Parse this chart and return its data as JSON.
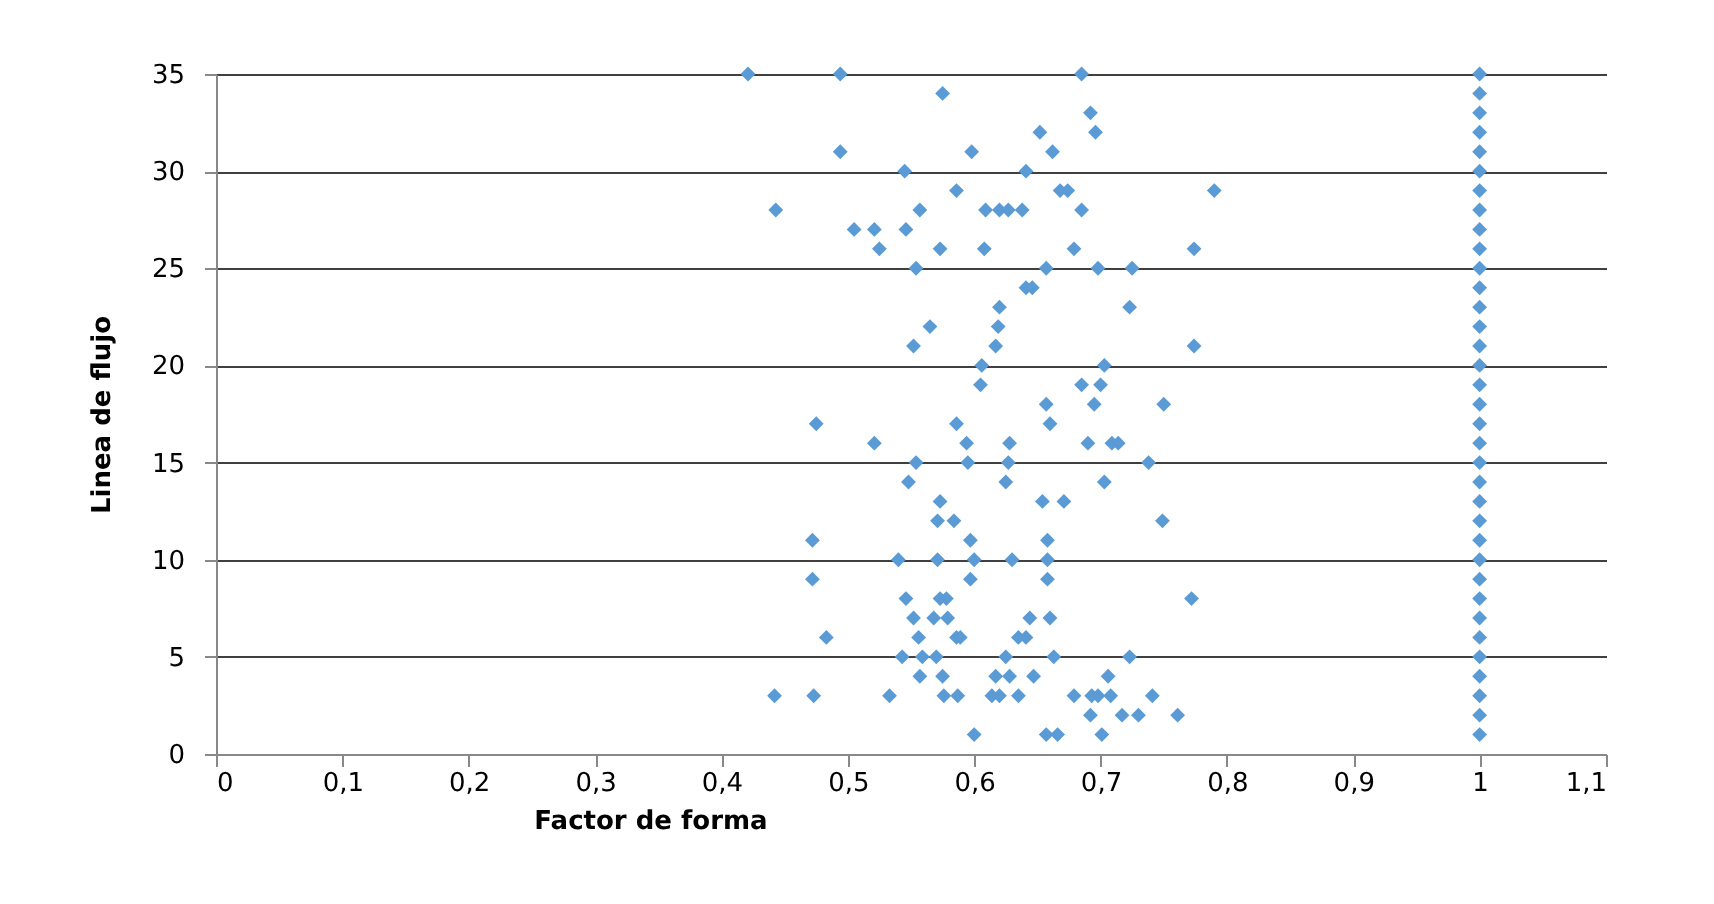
{
  "chart_data": {
    "type": "scatter",
    "xlabel": "Factor de forma",
    "ylabel": "Linea de flujo",
    "xlim": [
      0,
      1.1
    ],
    "xticks": [
      0,
      {
        "value": 0.1,
        "label": "0,1"
      },
      {
        "value": 0.2,
        "label": "0,2"
      },
      {
        "value": 0.3,
        "label": "0,3"
      },
      {
        "value": 0.4,
        "label": "0,4"
      },
      {
        "value": 0.5,
        "label": "0,5"
      },
      {
        "value": 0.6,
        "label": "0,6"
      },
      {
        "value": 0.7,
        "label": "0,7"
      },
      {
        "value": 0.8,
        "label": "0,8"
      },
      {
        "value": 0.9,
        "label": "0,9"
      },
      1,
      {
        "value": 1.1,
        "label": "1,1"
      }
    ],
    "ylim": [
      0,
      35
    ],
    "yticks": [
      0,
      5,
      10,
      15,
      20,
      25,
      30,
      35
    ],
    "grid": "y",
    "marker": "diamond",
    "series": [
      {
        "color": "#5b9bd5",
        "x": [
          0.421,
          0.494,
          0.685,
          0.575,
          0.692,
          0.652,
          0.696,
          0.494,
          0.598,
          0.662,
          0.545,
          0.641,
          0.586,
          0.668,
          0.674,
          0.79,
          0.443,
          0.557,
          0.609,
          0.62,
          0.627,
          0.638,
          0.685,
          0.505,
          0.521,
          0.546,
          0.525,
          0.573,
          0.608,
          0.679,
          0.774,
          0.554,
          0.657,
          0.698,
          0.725,
          0.641,
          0.646,
          0.62,
          0.723,
          0.565,
          0.619,
          0.552,
          0.617,
          0.774,
          0.606,
          0.703,
          0.605,
          0.685,
          0.7,
          0.657,
          0.695,
          0.75,
          0.475,
          0.586,
          0.66,
          0.521,
          0.594,
          0.628,
          0.69,
          0.709,
          0.714,
          0.554,
          0.595,
          0.627,
          0.738,
          0.548,
          0.625,
          0.703,
          0.573,
          0.654,
          0.671,
          0.571,
          0.584,
          0.749,
          0.472,
          0.597,
          0.658,
          0.54,
          0.571,
          0.6,
          0.63,
          0.658,
          0.472,
          0.597,
          0.658,
          0.546,
          0.573,
          0.578,
          0.772,
          0.552,
          0.568,
          0.579,
          0.644,
          0.66,
          0.483,
          0.556,
          0.586,
          0.589,
          0.635,
          0.641,
          0.543,
          0.559,
          0.57,
          0.625,
          0.663,
          0.723,
          0.557,
          0.575,
          0.617,
          0.628,
          0.647,
          0.706,
          0.442,
          0.473,
          0.533,
          0.576,
          0.587,
          0.614,
          0.62,
          0.635,
          0.679,
          0.693,
          0.698,
          0.708,
          0.741,
          0.692,
          0.717,
          0.73,
          0.761,
          0.6,
          0.657,
          0.666,
          0.701,
          1,
          1,
          1,
          1,
          1,
          1,
          1,
          1,
          1,
          1,
          1,
          1,
          1,
          1,
          1,
          1,
          1,
          1,
          1,
          1,
          1,
          1,
          1,
          1,
          1,
          1,
          1,
          1,
          1,
          1,
          1,
          1,
          1,
          1,
          1
        ],
        "values": [
          35,
          35,
          35,
          34,
          33,
          32,
          32,
          31,
          31,
          31,
          30,
          30,
          29,
          29,
          29,
          29,
          28,
          28,
          28,
          28,
          28,
          28,
          28,
          27,
          27,
          27,
          26,
          26,
          26,
          26,
          26,
          25,
          25,
          25,
          25,
          24,
          24,
          23,
          23,
          22,
          22,
          21,
          21,
          21,
          20,
          20,
          19,
          19,
          19,
          18,
          18,
          18,
          17,
          17,
          17,
          16,
          16,
          16,
          16,
          16,
          16,
          15,
          15,
          15,
          15,
          14,
          14,
          14,
          13,
          13,
          13,
          12,
          12,
          12,
          11,
          11,
          11,
          10,
          10,
          10,
          10,
          10,
          9,
          9,
          9,
          8,
          8,
          8,
          8,
          7,
          7,
          7,
          7,
          7,
          6,
          6,
          6,
          6,
          6,
          6,
          5,
          5,
          5,
          5,
          5,
          5,
          4,
          4,
          4,
          4,
          4,
          4,
          3,
          3,
          3,
          3,
          3,
          3,
          3,
          3,
          3,
          3,
          3,
          3,
          3,
          2,
          2,
          2,
          2,
          1,
          1,
          1,
          1,
          1,
          2,
          3,
          4,
          5,
          6,
          7,
          8,
          9,
          10,
          11,
          12,
          13,
          14,
          15,
          16,
          17,
          18,
          19,
          20,
          21,
          22,
          23,
          24,
          25,
          26,
          27,
          28,
          29,
          30,
          31,
          32,
          33,
          34,
          35
        ]
      }
    ]
  }
}
